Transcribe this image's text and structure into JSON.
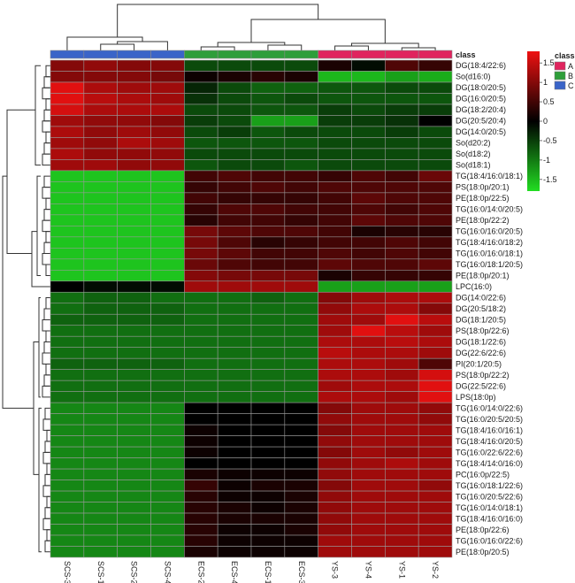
{
  "chart_data": {
    "type": "heatmap",
    "class_label": "class",
    "columns": [
      "SCS-3",
      "SCS-1",
      "SCS-2",
      "SCS-4",
      "ECS-2",
      "ECS-4",
      "ECS-1",
      "ECS-3",
      "YS-3",
      "YS-4",
      "YS-1",
      "YS-2"
    ],
    "column_classes": [
      "C",
      "C",
      "C",
      "C",
      "B",
      "B",
      "B",
      "B",
      "A",
      "A",
      "A",
      "A"
    ],
    "rows": [
      "DG(18:4/22:6)",
      "So(d16:0)",
      "DG(18:0/20:5)",
      "DG(16:0/20:5)",
      "DG(18:2/20:4)",
      "DG(20:5/20:4)",
      "DG(14:0/20:5)",
      "So(d20:2)",
      "So(d18:2)",
      "So(d18:1)",
      "TG(18:4/16:0/18:1)",
      "PS(18:0p/20:1)",
      "PE(18:0p/22:5)",
      "TG(16:0/14:0/20:5)",
      "PE(18:0p/22:2)",
      "TG(16:0/16:0/20:5)",
      "TG(18:4/16:0/18:2)",
      "TG(16:0/16:0/18:1)",
      "TG(16:0/18:1/20:5)",
      "PE(18:0p/20:1)",
      "LPC(16:0)",
      "DG(14:0/22:6)",
      "DG(20:5/18:2)",
      "DG(18:1/20:5)",
      "PS(18:0p/22:6)",
      "DG(18:1/22:6)",
      "DG(22:6/22:6)",
      "PI(20:1/20:5)",
      "PS(18:0p/22:2)",
      "DG(22:5/22:6)",
      "LPS(18:0p)",
      "TG(16:0/14:0/22:6)",
      "TG(16:0/20:5/20:5)",
      "TG(18:4/16:0/16:1)",
      "TG(18:4/16:0/20:5)",
      "TG(16:0/22:6/22:6)",
      "TG(18:4/14:0/16:0)",
      "PC(16:0p/22:5)",
      "TG(16:0/18:1/22:6)",
      "TG(16:0/20:5/22:6)",
      "TG(16:0/14:0/18:1)",
      "TG(18:4/16:0/16:0)",
      "PE(18:0p/22:6)",
      "TG(16:0/16:0/22:6)",
      "PE(18:0p/20:5)"
    ],
    "values": [
      [
        1.0,
        1.1,
        1.0,
        1.0,
        -0.6,
        -0.6,
        -0.6,
        -0.6,
        0.2,
        -0.1,
        0.6,
        0.4
      ],
      [
        1.0,
        1.0,
        1.0,
        0.9,
        0.1,
        0.2,
        0.3,
        0.2,
        -1.5,
        -1.5,
        -1.3,
        -1.4
      ],
      [
        1.7,
        1.3,
        1.2,
        1.2,
        -0.3,
        -0.6,
        -0.8,
        -0.8,
        -0.7,
        -0.7,
        -0.6,
        -0.6
      ],
      [
        1.7,
        1.4,
        1.3,
        1.2,
        -0.4,
        -0.6,
        -0.7,
        -0.6,
        -0.7,
        -0.7,
        -0.7,
        -0.7
      ],
      [
        1.6,
        1.3,
        1.3,
        1.3,
        -0.6,
        -0.6,
        -0.7,
        -0.7,
        -0.5,
        -0.6,
        -0.5,
        -0.5
      ],
      [
        1.2,
        1.1,
        1.1,
        1.0,
        -0.5,
        -0.6,
        -1.3,
        -1.3,
        -0.5,
        -0.5,
        -0.4,
        0.0
      ],
      [
        1.3,
        1.1,
        1.2,
        1.1,
        -0.6,
        -0.5,
        -0.7,
        -0.6,
        -0.6,
        -0.6,
        -0.5,
        -0.6
      ],
      [
        1.2,
        1.1,
        1.3,
        1.2,
        -0.7,
        -0.7,
        -0.7,
        -0.7,
        -0.6,
        -0.6,
        -0.6,
        -0.6
      ],
      [
        1.3,
        1.1,
        1.1,
        1.1,
        -0.6,
        -0.6,
        -0.6,
        -0.6,
        -0.6,
        -0.6,
        -0.6,
        -0.6
      ],
      [
        1.2,
        1.2,
        1.1,
        1.1,
        -0.7,
        -0.6,
        -0.6,
        -0.7,
        -0.6,
        -0.6,
        -0.6,
        -0.6
      ],
      [
        -1.6,
        -1.6,
        -1.6,
        -1.6,
        0.5,
        0.6,
        0.5,
        0.5,
        0.4,
        0.6,
        0.5,
        0.8
      ],
      [
        -1.6,
        -1.6,
        -1.6,
        -1.6,
        0.4,
        0.5,
        0.6,
        0.5,
        0.6,
        0.6,
        0.6,
        0.6
      ],
      [
        -1.6,
        -1.6,
        -1.6,
        -1.6,
        0.5,
        0.4,
        0.4,
        0.4,
        0.5,
        0.7,
        0.6,
        0.6
      ],
      [
        -1.6,
        -1.6,
        -1.6,
        -1.6,
        0.4,
        0.6,
        0.6,
        0.5,
        0.5,
        0.6,
        0.5,
        0.6
      ],
      [
        -1.6,
        -1.6,
        -1.6,
        -1.6,
        0.3,
        0.5,
        0.5,
        0.4,
        0.5,
        0.7,
        0.6,
        0.6
      ],
      [
        -1.6,
        -1.6,
        -1.6,
        -1.6,
        0.9,
        0.7,
        0.6,
        0.6,
        0.5,
        0.2,
        0.3,
        0.3
      ],
      [
        -1.6,
        -1.6,
        -1.6,
        -1.6,
        0.9,
        0.6,
        0.3,
        0.4,
        0.5,
        0.5,
        0.6,
        0.5
      ],
      [
        -1.6,
        -1.6,
        -1.6,
        -1.6,
        0.9,
        0.7,
        0.5,
        0.5,
        0.6,
        0.5,
        0.6,
        0.5
      ],
      [
        -1.6,
        -1.6,
        -1.6,
        -1.6,
        0.8,
        0.6,
        0.5,
        0.5,
        0.7,
        0.6,
        0.6,
        0.7
      ],
      [
        -1.6,
        -1.6,
        -1.6,
        -1.6,
        1.0,
        0.9,
        0.9,
        0.9,
        0.2,
        0.4,
        0.4,
        0.4
      ],
      [
        0.0,
        -0.1,
        -0.1,
        -0.1,
        1.2,
        1.2,
        1.2,
        1.2,
        -1.3,
        -1.3,
        -1.3,
        -1.3
      ],
      [
        -0.9,
        -0.8,
        -0.8,
        -0.9,
        -0.9,
        -0.9,
        -0.8,
        -0.9,
        1.0,
        1.2,
        1.3,
        1.3
      ],
      [
        -0.9,
        -0.8,
        -0.8,
        -0.8,
        -0.9,
        -0.9,
        -0.9,
        -0.9,
        1.1,
        1.3,
        1.3,
        1.0
      ],
      [
        -0.8,
        -0.8,
        -0.8,
        -0.8,
        -0.9,
        -0.9,
        -0.9,
        -0.9,
        1.2,
        1.2,
        1.7,
        1.4
      ],
      [
        -0.9,
        -0.9,
        -0.9,
        -0.9,
        -0.9,
        -0.9,
        -0.9,
        -0.9,
        1.2,
        1.7,
        1.4,
        1.2
      ],
      [
        -0.9,
        -0.9,
        -0.9,
        -0.9,
        -0.9,
        -0.9,
        -0.9,
        -0.9,
        1.3,
        1.3,
        1.4,
        1.3
      ],
      [
        -0.9,
        -0.9,
        -0.9,
        -0.9,
        -0.9,
        -0.9,
        -0.9,
        -0.9,
        1.4,
        1.3,
        1.3,
        1.2
      ],
      [
        -0.8,
        -0.8,
        -0.8,
        -0.8,
        -0.9,
        -0.9,
        -0.9,
        -0.9,
        1.3,
        1.3,
        1.2,
        0.6
      ],
      [
        -0.9,
        -0.9,
        -0.9,
        -0.9,
        -0.9,
        -0.9,
        -0.9,
        -0.9,
        1.3,
        1.3,
        1.2,
        1.6
      ],
      [
        -0.9,
        -0.9,
        -0.9,
        -0.9,
        -0.9,
        -0.9,
        -0.9,
        -0.9,
        1.2,
        1.3,
        1.3,
        1.7
      ],
      [
        -0.9,
        -0.9,
        -0.9,
        -0.9,
        -0.9,
        -0.9,
        -0.9,
        -0.9,
        1.3,
        1.3,
        1.2,
        1.7
      ],
      [
        -1.1,
        -1.1,
        -1.1,
        -1.1,
        0.0,
        0.0,
        0.0,
        0.0,
        1.0,
        1.2,
        1.2,
        1.1
      ],
      [
        -1.1,
        -1.1,
        -1.1,
        -1.1,
        0.0,
        0.0,
        0.0,
        0.0,
        1.1,
        1.2,
        1.2,
        1.1
      ],
      [
        -1.1,
        -1.1,
        -1.1,
        -1.1,
        0.1,
        0.0,
        0.0,
        0.0,
        1.0,
        1.2,
        1.2,
        1.2
      ],
      [
        -1.1,
        -1.1,
        -1.1,
        -1.1,
        0.1,
        0.0,
        0.0,
        0.0,
        1.1,
        1.2,
        1.2,
        1.2
      ],
      [
        -1.1,
        -1.1,
        -1.1,
        -1.1,
        0.1,
        0.0,
        0.0,
        0.0,
        1.0,
        1.2,
        1.1,
        1.2
      ],
      [
        -1.1,
        -1.1,
        -1.1,
        -1.1,
        0.0,
        0.0,
        0.0,
        0.0,
        1.1,
        1.2,
        1.3,
        1.2
      ],
      [
        -1.1,
        -1.1,
        -1.1,
        -1.1,
        0.2,
        0.1,
        0.1,
        0.1,
        1.1,
        1.2,
        1.2,
        1.2
      ],
      [
        -1.1,
        -1.1,
        -1.1,
        -1.1,
        0.4,
        0.1,
        0.2,
        0.2,
        1.0,
        1.2,
        1.2,
        1.1
      ],
      [
        -1.1,
        -1.1,
        -1.1,
        -1.1,
        0.3,
        0.1,
        0.1,
        0.2,
        1.1,
        1.2,
        1.2,
        1.2
      ],
      [
        -1.1,
        -1.1,
        -1.1,
        -1.1,
        0.3,
        0.2,
        0.1,
        0.2,
        1.1,
        1.2,
        1.2,
        1.2
      ],
      [
        -1.1,
        -1.1,
        -1.1,
        -1.1,
        0.3,
        0.2,
        0.2,
        0.2,
        1.1,
        1.2,
        1.2,
        1.2
      ],
      [
        -1.1,
        -1.1,
        -1.1,
        -1.1,
        0.3,
        0.1,
        0.1,
        0.2,
        1.1,
        1.2,
        1.2,
        1.2
      ],
      [
        -1.1,
        -1.1,
        -1.1,
        -1.1,
        0.3,
        0.1,
        0.1,
        0.1,
        1.2,
        1.2,
        1.2,
        1.2
      ],
      [
        -1.1,
        -1.1,
        -1.1,
        -1.1,
        0.2,
        0.1,
        0.1,
        0.1,
        1.2,
        1.2,
        1.2,
        1.2
      ]
    ],
    "color_scale": {
      "min": -1.8,
      "max": 1.8,
      "low_color": "#22dd22",
      "mid_color": "#000000",
      "high_color": "#ee1111",
      "ticks": [
        "1.5",
        "1",
        "0.5",
        "0",
        "-0.5",
        "-1",
        "-1.5"
      ]
    },
    "legend": {
      "title": "class",
      "entries": [
        {
          "label": "A",
          "color": "#e0245e"
        },
        {
          "label": "B",
          "color": "#2e9e3a"
        },
        {
          "label": "C",
          "color": "#3a64c8"
        }
      ]
    }
  }
}
